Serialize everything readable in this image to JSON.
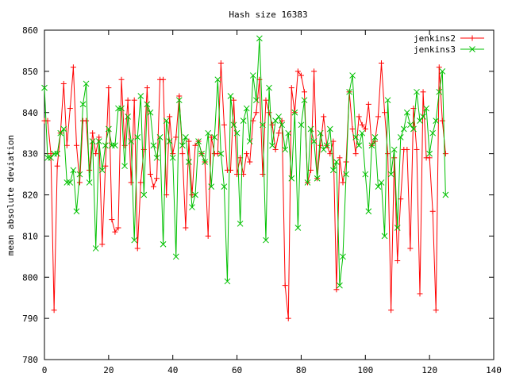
{
  "chart_data": {
    "type": "line",
    "title": "Hash size 16383",
    "xlabel": "",
    "ylabel": "mean absolute deviation",
    "xlim": [
      0,
      140
    ],
    "ylim": [
      780,
      860
    ],
    "x_ticks": [
      0,
      20,
      40,
      60,
      80,
      100,
      120,
      140
    ],
    "y_ticks": [
      780,
      790,
      800,
      810,
      820,
      830,
      840,
      850,
      860
    ],
    "grid": false,
    "legend_position": "top-right",
    "series": [
      {
        "name": "jenkins2",
        "color": "#ff0000",
        "marker": "plus",
        "values": [
          838,
          838,
          830,
          792,
          827,
          835,
          847,
          832,
          841,
          851,
          832,
          823,
          838,
          838,
          826,
          835,
          830,
          834,
          808,
          827,
          846,
          814,
          811,
          812,
          848,
          832,
          843,
          823,
          843,
          807,
          823,
          831,
          846,
          825,
          822,
          824,
          848,
          848,
          820,
          839,
          830,
          834,
          844,
          830,
          812,
          833,
          820,
          832,
          833,
          830,
          828,
          810,
          834,
          830,
          830,
          852,
          837,
          826,
          826,
          843,
          825,
          829,
          825,
          830,
          828,
          838,
          840,
          848,
          825,
          843,
          840,
          837,
          831,
          835,
          838,
          798,
          790,
          846,
          840,
          850,
          849,
          845,
          823,
          826,
          850,
          824,
          832,
          839,
          832,
          830,
          833,
          797,
          829,
          823,
          828,
          845,
          836,
          830,
          839,
          837,
          836,
          842,
          832,
          833,
          839,
          852,
          840,
          830,
          792,
          829,
          804,
          819,
          831,
          831,
          807,
          841,
          831,
          796,
          845,
          829,
          829,
          816,
          792,
          851,
          838,
          830
        ],
        "note": ""
      },
      {
        "name": "jenkins3",
        "color": "#00c000",
        "marker": "cross",
        "values": [
          846,
          829,
          829,
          830,
          830,
          835,
          836,
          823,
          823,
          826,
          816,
          825,
          842,
          847,
          823,
          833,
          807,
          833,
          826,
          832,
          836,
          832,
          832,
          841,
          841,
          827,
          839,
          833,
          809,
          834,
          844,
          820,
          842,
          840,
          832,
          829,
          834,
          808,
          838,
          833,
          829,
          805,
          843,
          832,
          834,
          828,
          817,
          820,
          833,
          830,
          828,
          835,
          822,
          834,
          848,
          830,
          822,
          799,
          844,
          837,
          835,
          813,
          838,
          841,
          833,
          849,
          843,
          858,
          837,
          809,
          846,
          832,
          838,
          839,
          837,
          831,
          835,
          824,
          840,
          812,
          837,
          843,
          823,
          836,
          833,
          824,
          835,
          831,
          832,
          836,
          826,
          828,
          798,
          805,
          825,
          845,
          849,
          834,
          832,
          835,
          825,
          816,
          832,
          834,
          822,
          823,
          810,
          843,
          825,
          831,
          812,
          834,
          836,
          840,
          837,
          836,
          845,
          838,
          839,
          841,
          830,
          835,
          838,
          845,
          850,
          820
        ]
      }
    ]
  }
}
